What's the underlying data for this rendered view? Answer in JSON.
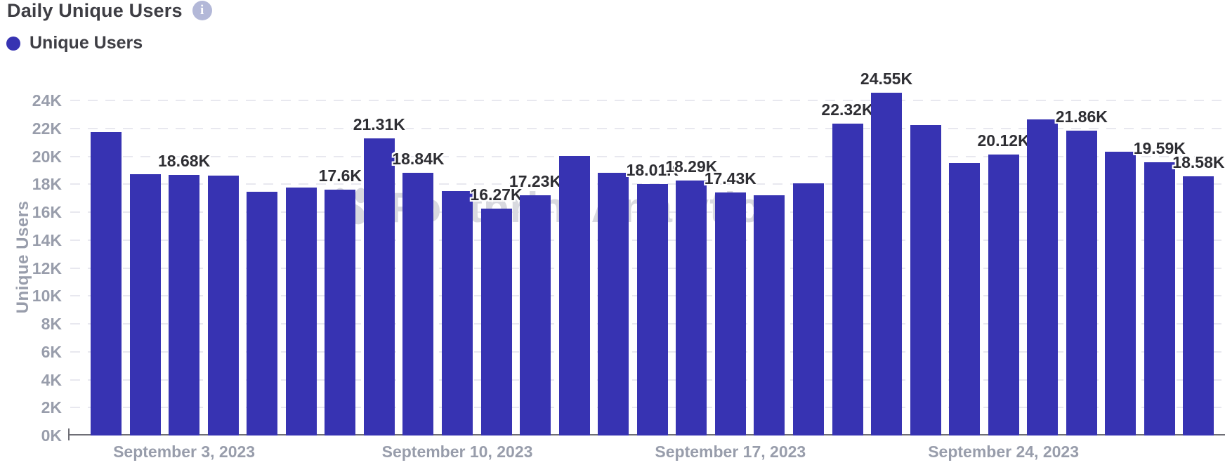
{
  "header": {
    "title": "Daily Unique Users",
    "info_icon": {
      "glyph": "i",
      "bg_color": "#b3b8d8"
    }
  },
  "legend": {
    "items": [
      {
        "label": "Unique Users",
        "color": "#3733b2"
      }
    ]
  },
  "watermark": {
    "text": "Footprint Analytics"
  },
  "colors": {
    "bar": "#3733b2",
    "title_text": "#3e3e44",
    "data_label_text": "#2e2e33",
    "axis_text": "#989dab",
    "gridline": "#e8e8ef",
    "axis_line": "#6e6e76",
    "info_icon_bg": "#b3b8d8",
    "watermark_text": "#d8d9df"
  },
  "chart_data": {
    "type": "bar",
    "title": "Daily Unique Users",
    "ylabel": "Unique Users",
    "xlabel": "",
    "ylim": [
      0,
      24000
    ],
    "y_tick_labels": [
      "0K",
      "2K",
      "4K",
      "6K",
      "8K",
      "10K",
      "12K",
      "14K",
      "16K",
      "18K",
      "20K",
      "22K",
      "24K"
    ],
    "grid": "horizontal-dashed",
    "legend_position": "top-left",
    "x_range": {
      "start": "September 1, 2023",
      "end": "September 29, 2023",
      "step": "1 day"
    },
    "x_axis_ticks": [
      {
        "bar_index": 2,
        "label": "September 3, 2023"
      },
      {
        "bar_index": 9,
        "label": "September 10, 2023"
      },
      {
        "bar_index": 16,
        "label": "September 17, 2023"
      },
      {
        "bar_index": 23,
        "label": "September 24, 2023"
      }
    ],
    "series": [
      {
        "name": "Unique Users",
        "color": "#3733b2",
        "values": [
          21740,
          18700,
          18680,
          18600,
          17450,
          17780,
          17600,
          21310,
          18840,
          17530,
          16270,
          17230,
          20020,
          18800,
          18010,
          18290,
          17430,
          17200,
          18080,
          22320,
          24550,
          22240,
          19500,
          20120,
          22650,
          21860,
          20320,
          19590,
          18580
        ],
        "data_labels": [
          null,
          null,
          "18.68K",
          null,
          null,
          null,
          "17.6K",
          "21.31K",
          "18.84K",
          null,
          "16.27K",
          "17.23K",
          null,
          null,
          "18.01K",
          "18.29K",
          "17.43K",
          null,
          null,
          "22.32K",
          "24.55K",
          null,
          null,
          "20.12K",
          null,
          "21.86K",
          null,
          "19.59K",
          "18.58K"
        ]
      }
    ]
  }
}
